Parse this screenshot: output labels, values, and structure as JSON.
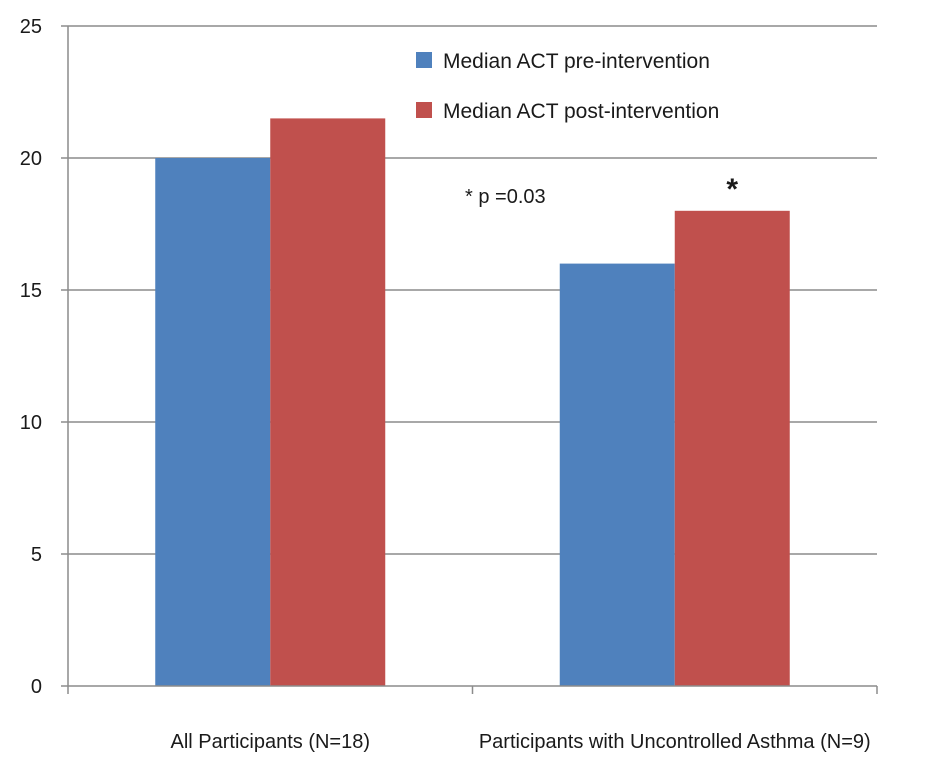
{
  "chart_data": {
    "type": "bar",
    "categories": [
      "All Participants (N=18)",
      "Participants with Uncontrolled Asthma (N=9)"
    ],
    "series": [
      {
        "name": "Median ACT pre-intervention",
        "color": "#4F81BD",
        "values": [
          20,
          16
        ]
      },
      {
        "name": "Median ACT post-intervention",
        "color": "#C0504D",
        "values": [
          21.5,
          18
        ]
      }
    ],
    "ylim": [
      0,
      25
    ],
    "yticks": [
      0,
      5,
      10,
      15,
      20,
      25
    ],
    "grid": true,
    "legend_position": "top-right",
    "annotation": "* p =0.03",
    "significance_marker": {
      "label": "*",
      "category_index": 1,
      "series_index": 1
    }
  }
}
